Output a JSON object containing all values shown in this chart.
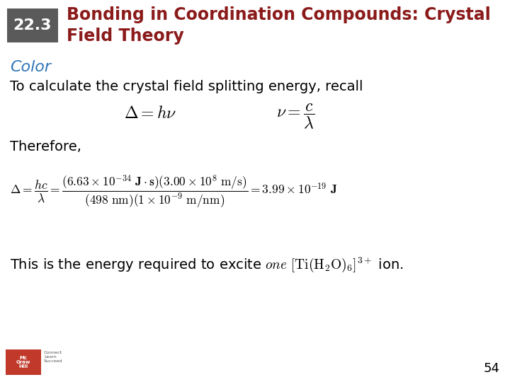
{
  "bg_color": "#ffffff",
  "header_box_color": "#5a5a5a",
  "header_number": "22.3",
  "header_number_color": "#ffffff",
  "header_title_line1": "Bonding in Coordination Compounds: Crystal",
  "header_title_line2": "Field Theory",
  "header_title_color": "#8b1a1a",
  "section_label": "Color",
  "section_label_color": "#2e75b6",
  "body_text1": "To calculate the crystal field splitting energy, recall",
  "body_text1_color": "#000000",
  "therefore_text": "Therefore,",
  "page_number": "54",
  "font_color": "#000000"
}
